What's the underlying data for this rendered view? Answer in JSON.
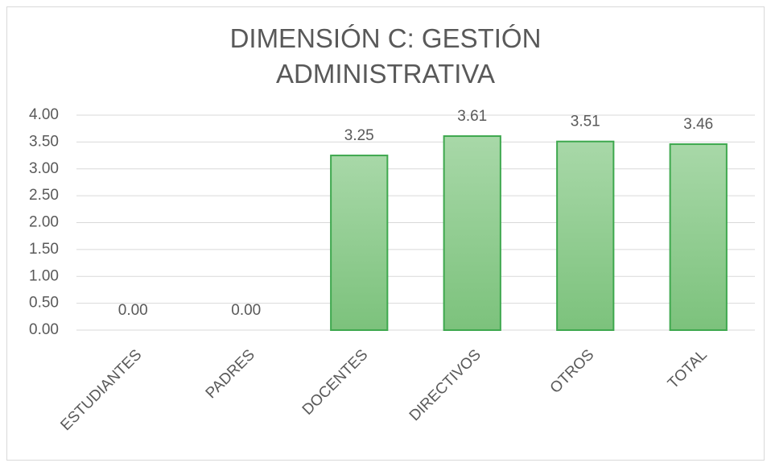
{
  "chart_data": {
    "type": "bar",
    "title": "DIMENSIÓN  C: GESTIÓN ADMINISTRATIVA",
    "categories": [
      "ESTUDIANTES",
      "PADRES",
      "DOCENTES",
      "DIRECTIVOS",
      "OTROS",
      "TOTAL"
    ],
    "values": [
      0,
      0,
      3.25,
      3.61,
      3.51,
      3.46
    ],
    "value_labels": [
      "0.00",
      "0.00",
      "3.25",
      "3.61",
      "3.51",
      "3.46"
    ],
    "color": "#8fcf8f",
    "ylim": [
      0,
      4
    ],
    "yticks": [
      {
        "value": 0,
        "label": "0.00"
      },
      {
        "value": 0.5,
        "label": "0.50"
      },
      {
        "value": 1,
        "label": "1.00"
      },
      {
        "value": 1.5,
        "label": "1.50"
      },
      {
        "value": 2,
        "label": "2.00"
      },
      {
        "value": 2.5,
        "label": "2.50"
      },
      {
        "value": 3,
        "label": "3.00"
      },
      {
        "value": 3.5,
        "label": "3.50"
      },
      {
        "value": 4,
        "label": "4.00"
      }
    ],
    "grid": true
  }
}
